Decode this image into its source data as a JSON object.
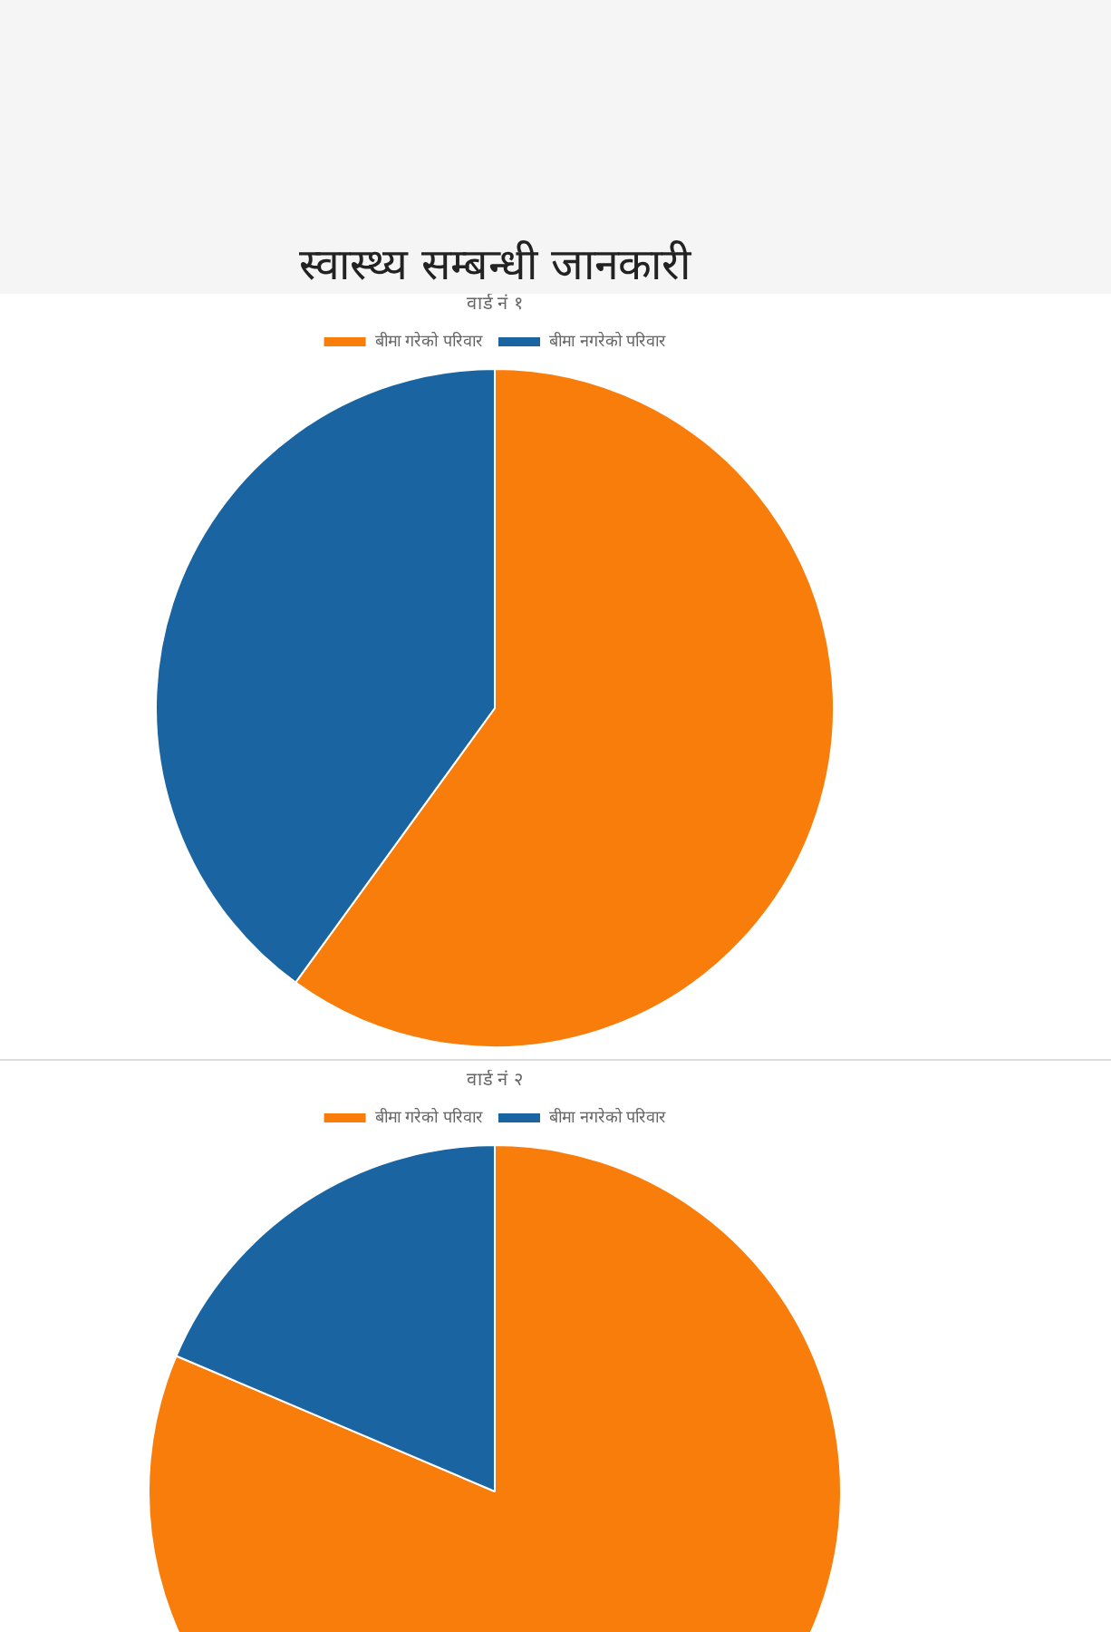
{
  "chart_data": [
    {
      "type": "pie",
      "title": "स्वास्थ्य सम्बन्धी जानकारी",
      "subtitle": "वार्ड नं १",
      "categories": [
        "बीमा गरेको परिवार",
        "बीमा नगरेको परिवार"
      ],
      "values": [
        60,
        40
      ],
      "colors": [
        "#f97d0b",
        "#1a65a1"
      ],
      "legend": "top"
    },
    {
      "type": "pie",
      "title": "वार्ड नं २",
      "categories": [
        "बीमा गरेको परिवार",
        "बीमा नगरेको परिवार"
      ],
      "values": [
        81.4,
        18.6
      ],
      "colors": [
        "#f97d0b",
        "#1a65a1"
      ],
      "legend": "top"
    }
  ]
}
